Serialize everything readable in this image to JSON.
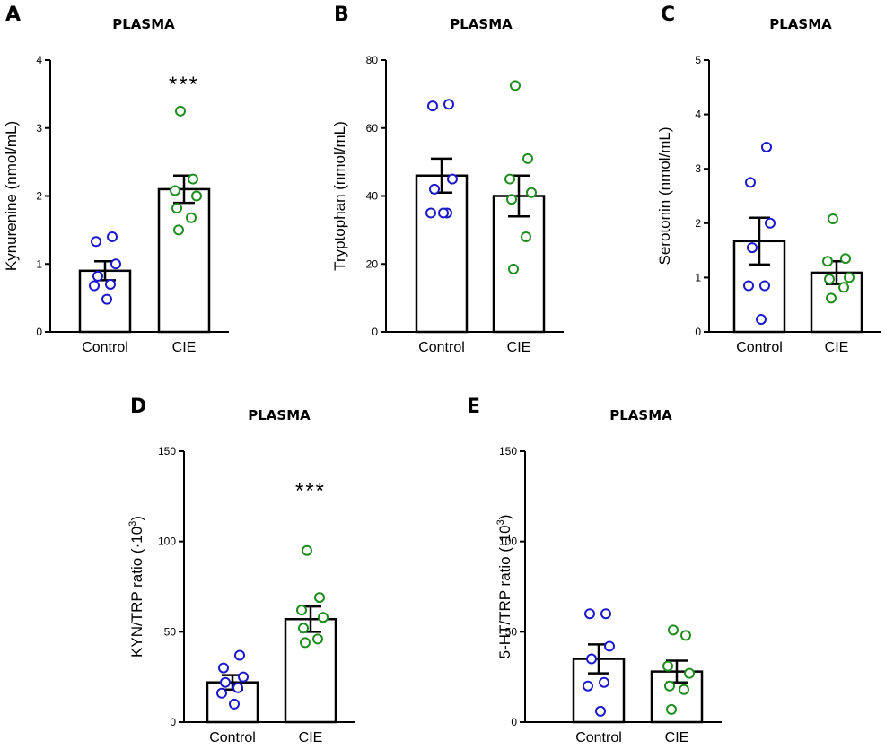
{
  "colors": {
    "control": "#1a1acc",
    "cie": "#1e8c1e",
    "ink": "#000000"
  },
  "chart_data": [
    {
      "type": "bar",
      "panel_label": "A",
      "title": "PLASMA",
      "ylabel": "Kynurenine (nmol/mL)",
      "ylabel_superscript": "",
      "ylabel_suffix": "",
      "ylim": [
        0,
        4
      ],
      "yticks": [
        0,
        1,
        2,
        3,
        4
      ],
      "ytick_labels": [
        "0",
        "1",
        "2",
        "3",
        "4"
      ],
      "categories": [
        "Control",
        "CIE"
      ],
      "values": [
        0.9,
        2.1
      ],
      "errors": [
        0.14,
        0.2
      ],
      "points": [
        [
          1.4,
          1.33,
          1.0,
          0.82,
          0.7,
          0.68,
          0.48
        ],
        [
          3.25,
          2.25,
          2.08,
          2.0,
          1.82,
          1.68,
          1.5
        ]
      ],
      "significance": [
        "",
        "***"
      ]
    },
    {
      "type": "bar",
      "panel_label": "B",
      "title": "PLASMA",
      "ylabel": "Tryptophan (nmol/mL)",
      "ylabel_superscript": "",
      "ylabel_suffix": "",
      "ylim": [
        0,
        80
      ],
      "yticks": [
        0,
        20,
        40,
        60,
        80
      ],
      "ytick_labels": [
        "0",
        "20",
        "40",
        "60",
        "80"
      ],
      "categories": [
        "Control",
        "CIE"
      ],
      "values": [
        46,
        40
      ],
      "errors": [
        5,
        6
      ],
      "points": [
        [
          67,
          66.5,
          45,
          42,
          35,
          35,
          35
        ],
        [
          72.5,
          51,
          45,
          41,
          39,
          28,
          18.5
        ]
      ],
      "significance": [
        "",
        ""
      ]
    },
    {
      "type": "bar",
      "panel_label": "C",
      "title": "PLASMA",
      "ylabel": "Serotonin (nmol/mL)",
      "ylabel_superscript": "",
      "ylabel_suffix": "",
      "ylim": [
        0,
        5
      ],
      "yticks": [
        0,
        1,
        2,
        3,
        4,
        5
      ],
      "ytick_labels": [
        "0",
        "1",
        "2",
        "3",
        "4",
        "5"
      ],
      "categories": [
        "Control",
        "CIE"
      ],
      "values": [
        1.67,
        1.09
      ],
      "errors": [
        0.43,
        0.21
      ],
      "points": [
        [
          3.4,
          2.75,
          2.0,
          1.55,
          0.85,
          0.85,
          0.23
        ],
        [
          2.08,
          1.35,
          1.3,
          1.0,
          0.97,
          0.82,
          0.62
        ]
      ],
      "significance": [
        "",
        ""
      ]
    },
    {
      "type": "bar",
      "panel_label": "D",
      "title": "PLASMA",
      "ylabel": "KYN/TRP ratio (·10",
      "ylabel_superscript": "3",
      "ylabel_suffix": ")",
      "ylim": [
        0,
        150
      ],
      "yticks": [
        0,
        50,
        100,
        150
      ],
      "ytick_labels": [
        "0",
        "50",
        "100",
        "150"
      ],
      "categories": [
        "Control",
        "CIE"
      ],
      "values": [
        22,
        57
      ],
      "errors": [
        4,
        7
      ],
      "points": [
        [
          37,
          30,
          25,
          22,
          19,
          16,
          10
        ],
        [
          95,
          69,
          62,
          58,
          52,
          46,
          44
        ]
      ],
      "significance": [
        "",
        "***"
      ]
    },
    {
      "type": "bar",
      "panel_label": "E",
      "title": "PLASMA",
      "ylabel": "5-HT/TRP ratio (·10",
      "ylabel_superscript": "3",
      "ylabel_suffix": ")",
      "ylim": [
        0,
        150
      ],
      "yticks": [
        0,
        50,
        100,
        150
      ],
      "ytick_labels": [
        "0",
        "50",
        "100",
        "150"
      ],
      "categories": [
        "Control",
        "CIE"
      ],
      "values": [
        35,
        28
      ],
      "errors": [
        8,
        6
      ],
      "points": [
        [
          60,
          60,
          42,
          35,
          22,
          20,
          6
        ],
        [
          51,
          48,
          31,
          27,
          20,
          18,
          7
        ]
      ],
      "significance": [
        "",
        ""
      ]
    }
  ]
}
